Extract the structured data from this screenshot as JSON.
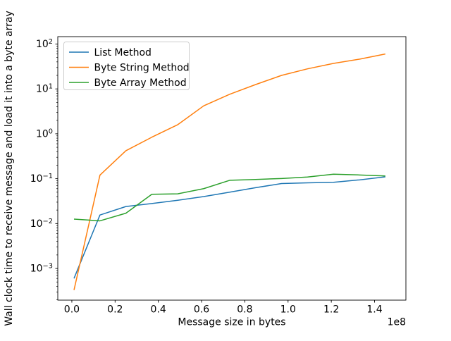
{
  "chart_data": {
    "type": "line",
    "title": "",
    "xlabel": "Message size in bytes",
    "ylabel": "Wall clock time to receive message and load it into a byte array",
    "x_offset_label": "1e8",
    "y_scale": "log",
    "x_scale": "linear",
    "grid": false,
    "xlim": [
      -6500000,
      154500000
    ],
    "ylim": [
      0.000197,
      146
    ],
    "x_ticks": [
      0,
      20000000,
      40000000,
      60000000,
      80000000,
      100000000,
      120000000,
      140000000
    ],
    "x_tick_labels": [
      "0.0",
      "0.2",
      "0.4",
      "0.6",
      "0.8",
      "1.0",
      "1.2",
      "1.4"
    ],
    "y_tick_exponents": [
      -3,
      -2,
      -1,
      0,
      1,
      2
    ],
    "y_tick_labels_display": [
      "10⁻³",
      "10⁻²",
      "10⁻¹",
      "10⁰",
      "10¹",
      "10²"
    ],
    "x": [
      1000000,
      13000000,
      25000000,
      37000000,
      49000000,
      61000000,
      73000000,
      85000000,
      97000000,
      109000000,
      121000000,
      133000000,
      145000000
    ],
    "series": [
      {
        "name": "List Method",
        "color": "#1f77b4",
        "values": [
          0.0006,
          0.0155,
          0.024,
          0.028,
          0.033,
          0.04,
          0.05,
          0.063,
          0.078,
          0.081,
          0.083,
          0.094,
          0.11
        ]
      },
      {
        "name": "Byte String Method",
        "color": "#ff7f0e",
        "values": [
          0.00033,
          0.12,
          0.42,
          0.84,
          1.6,
          4.2,
          7.6,
          12.5,
          20,
          28,
          37,
          46,
          60
        ]
      },
      {
        "name": "Byte Array Method",
        "color": "#2ca02c",
        "values": [
          0.0126,
          0.0115,
          0.017,
          0.045,
          0.046,
          0.06,
          0.092,
          0.096,
          0.101,
          0.109,
          0.126,
          0.121,
          0.115
        ]
      }
    ],
    "legend": {
      "position": "upper-left",
      "entries": [
        "List Method",
        "Byte String Method",
        "Byte Array Method"
      ]
    }
  }
}
